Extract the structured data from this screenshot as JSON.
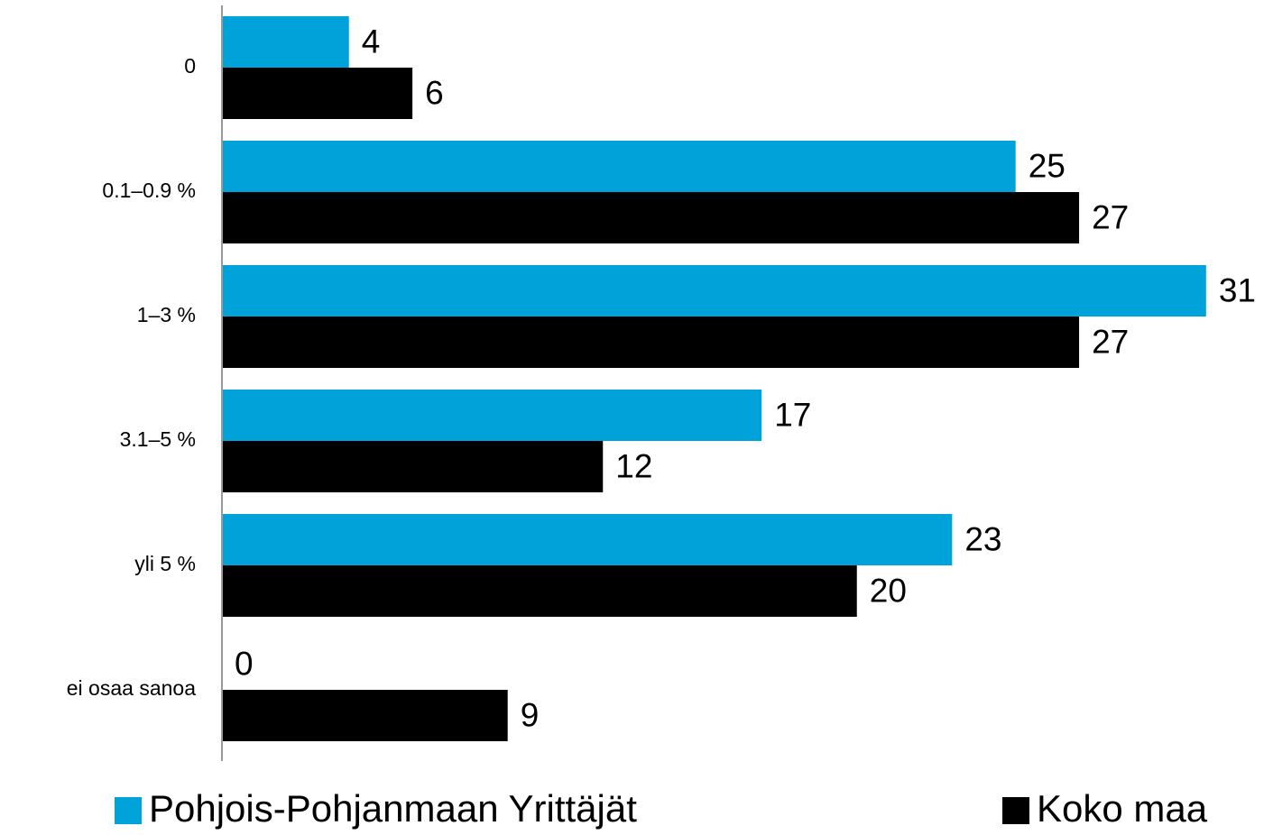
{
  "chart_data": {
    "type": "hbar",
    "categories": [
      "0",
      "0.1–0.9 %",
      "1–3 %",
      "3.1–5 %",
      "yli 5 %",
      "ei osaa sanoa"
    ],
    "series": [
      {
        "name": "Pohjois-Pohjanmaan Yrittäjät",
        "color": "#00a3d9",
        "values": [
          4,
          25,
          31,
          17,
          23,
          0
        ]
      },
      {
        "name": "Koko maa",
        "color": "#000000",
        "values": [
          6,
          27,
          27,
          12,
          20,
          9
        ]
      }
    ],
    "xlim": [
      0,
      32
    ],
    "legend": "bottom"
  }
}
